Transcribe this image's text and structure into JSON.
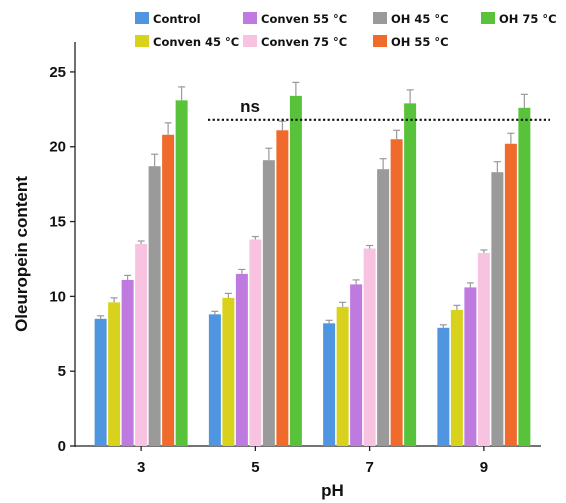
{
  "chart_data": {
    "type": "bar",
    "title": "",
    "xlabel": "pH",
    "ylabel": "Oleuropein content",
    "ylim": [
      0,
      27
    ],
    "yticks": [
      0,
      5,
      10,
      15,
      20,
      25
    ],
    "grid": false,
    "legend_position": "top",
    "categories": [
      "3",
      "5",
      "7",
      "9"
    ],
    "series": [
      {
        "name": "Control",
        "color": "#4f95e0",
        "values": [
          8.5,
          8.8,
          8.2,
          7.9
        ],
        "errors": [
          0.2,
          0.2,
          0.2,
          0.2
        ]
      },
      {
        "name": "Conven 45 °C",
        "color": "#d8d21c",
        "values": [
          9.6,
          9.9,
          9.3,
          9.1
        ],
        "errors": [
          0.3,
          0.3,
          0.3,
          0.3
        ]
      },
      {
        "name": "Conven 55 °C",
        "color": "#bf7ae0",
        "values": [
          11.1,
          11.5,
          10.8,
          10.6
        ],
        "errors": [
          0.3,
          0.3,
          0.3,
          0.3
        ]
      },
      {
        "name": "Conven 75 °C",
        "color": "#f8c3e0",
        "values": [
          13.5,
          13.8,
          13.2,
          12.9
        ],
        "errors": [
          0.2,
          0.2,
          0.2,
          0.2
        ]
      },
      {
        "name": "OH 45 °C",
        "color": "#9a9a9a",
        "values": [
          18.7,
          19.1,
          18.5,
          18.3
        ],
        "errors": [
          0.8,
          0.8,
          0.7,
          0.7
        ]
      },
      {
        "name": "OH 55 °C",
        "color": "#f06a2c",
        "values": [
          20.8,
          21.1,
          20.5,
          20.2
        ],
        "errors": [
          0.8,
          0.6,
          0.6,
          0.7
        ]
      },
      {
        "name": "OH 75 °C",
        "color": "#58c33a",
        "values": [
          23.1,
          23.4,
          22.9,
          22.6
        ],
        "errors": [
          0.9,
          0.9,
          0.9,
          0.9
        ]
      }
    ],
    "reference_line": {
      "y": 21.8,
      "style": "dotted"
    },
    "annotations": [
      {
        "text": "ns"
      }
    ]
  }
}
